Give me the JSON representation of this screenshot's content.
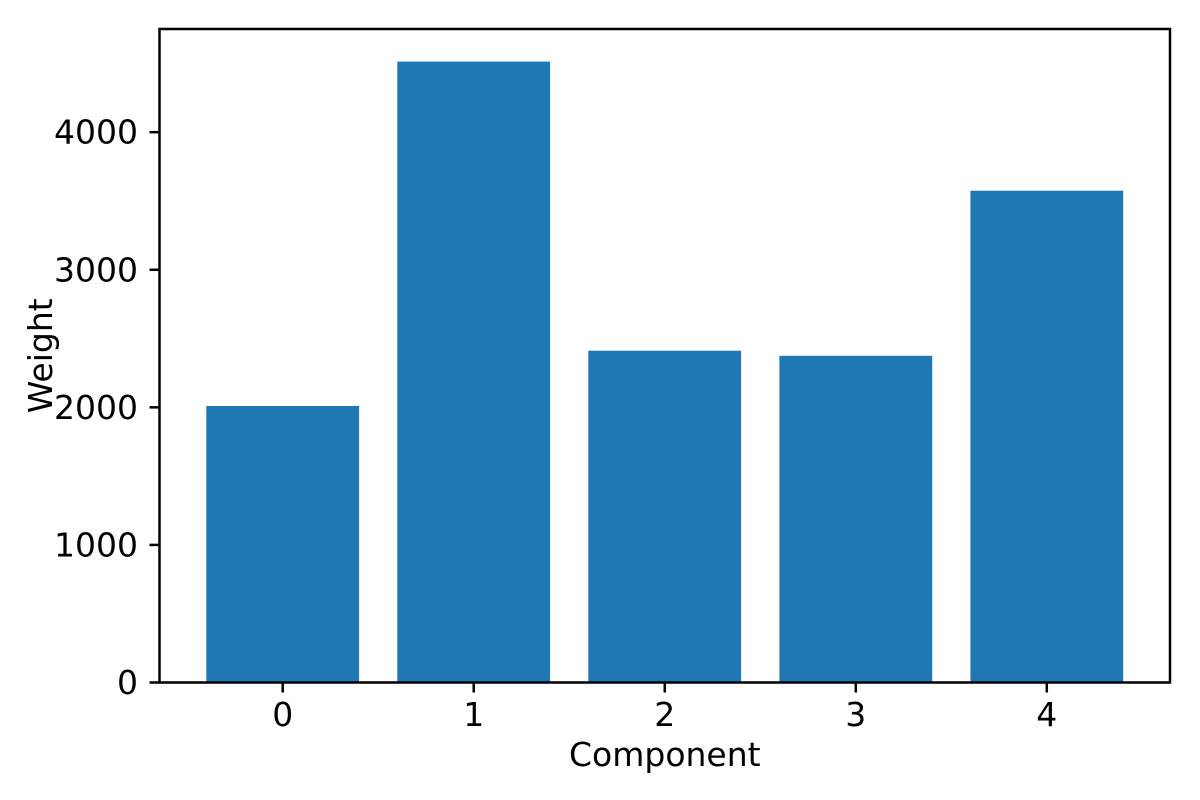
{
  "chart_data": {
    "type": "bar",
    "title": "",
    "xlabel": "Component",
    "ylabel": "Weight",
    "categories": [
      "0",
      "1",
      "2",
      "3",
      "4"
    ],
    "values": [
      2010,
      4513,
      2412,
      2375,
      3575
    ],
    "y_ticks": [
      0,
      1000,
      2000,
      3000,
      4000
    ],
    "y_tick_labels": [
      "0",
      "1000",
      "2000",
      "3000",
      "4000"
    ],
    "ylim": [
      0,
      4750
    ],
    "xlim": [
      -0.645,
      4.645
    ],
    "bar_width": 0.8,
    "bar_color": "#1f77b4",
    "axis_color": "#000000",
    "background_color": "#ffffff",
    "grid": false,
    "legend": "none"
  }
}
